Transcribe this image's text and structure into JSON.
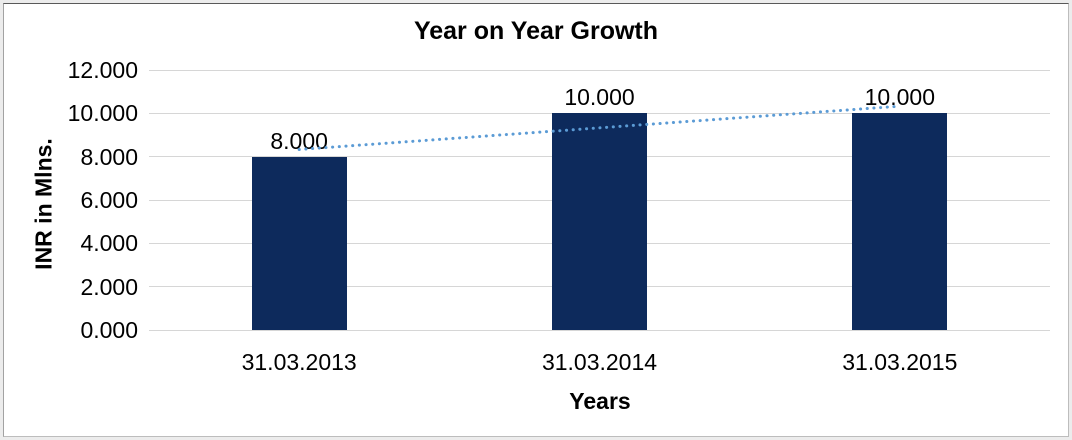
{
  "window": {
    "background_color": "#ffffff",
    "frame_border_color": "#595959"
  },
  "chart_data": {
    "type": "bar",
    "title": "Year on Year Growth",
    "xlabel": "Years",
    "ylabel": "INR in Mlns.",
    "categories": [
      "31.03.2013",
      "31.03.2014",
      "31.03.2015"
    ],
    "values": [
      8.0,
      10.0,
      10.0
    ],
    "data_labels": [
      "8.000",
      "10.000",
      "10.000"
    ],
    "ylim": [
      0,
      12
    ],
    "ytick_step": 2,
    "ytick_labels": [
      "0.000",
      "2.000",
      "4.000",
      "6.000",
      "8.000",
      "10.000",
      "12.000"
    ],
    "grid": true,
    "legend_position": "none",
    "bar_color": "#0d2a5c",
    "gridline_color": "#d6d6d6",
    "text_color": "#000000",
    "trendline": {
      "type": "linear",
      "style": "dotted",
      "color": "#5b9bd5",
      "start_value": 8.33,
      "end_value": 10.33
    }
  }
}
